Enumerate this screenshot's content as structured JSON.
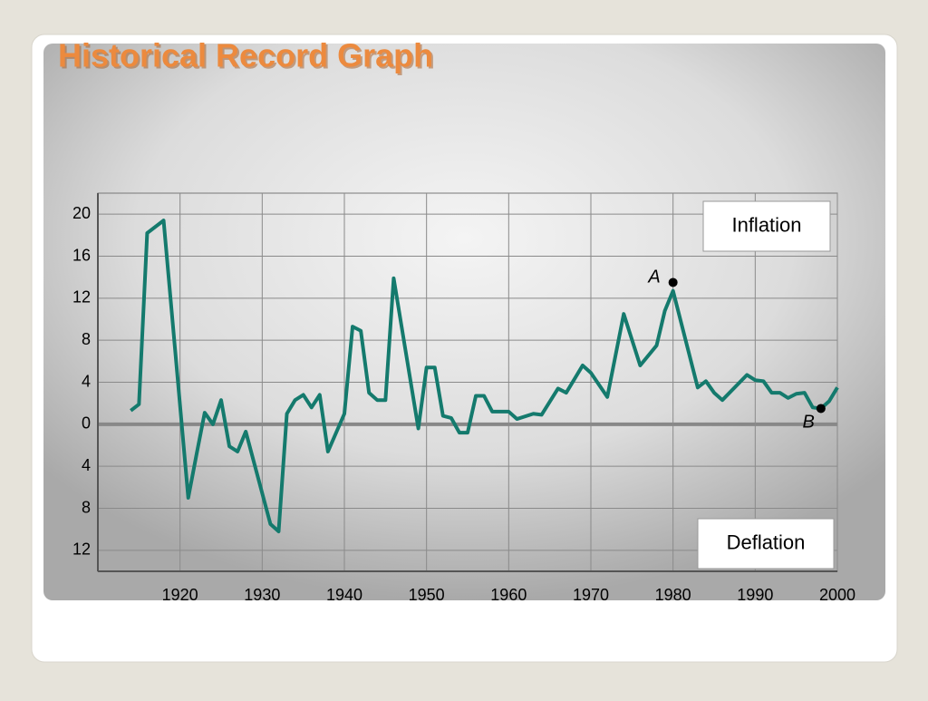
{
  "chart_data": {
    "type": "line",
    "title": "Historical Record Graph",
    "x": [
      1914,
      1915,
      1916,
      1918,
      1921,
      1922,
      1923,
      1924,
      1925,
      1926,
      1927,
      1928,
      1931,
      1932,
      1933,
      1934,
      1935,
      1936,
      1937,
      1938,
      1940,
      1941,
      1942,
      1943,
      1944,
      1945,
      1946,
      1949,
      1950,
      1951,
      1952,
      1953,
      1954,
      1955,
      1956,
      1957,
      1958,
      1960,
      1961,
      1963,
      1964,
      1966,
      1967,
      1969,
      1970,
      1972,
      1974,
      1976,
      1978,
      1979,
      1980,
      1983,
      1984,
      1985,
      1986,
      1989,
      1990,
      1991,
      1992,
      1993,
      1994,
      1995,
      1996,
      1997,
      1998,
      1999,
      2000
    ],
    "values": [
      1.3,
      1.9,
      18.2,
      19.4,
      -7.0,
      -2.9,
      1.1,
      0,
      2.3,
      -2.1,
      -2.6,
      -0.7,
      -9.5,
      -10.2,
      1.0,
      2.3,
      2.8,
      1.6,
      2.8,
      -2.6,
      1.0,
      9.3,
      8.9,
      3.0,
      2.3,
      2.3,
      13.9,
      -0.4,
      5.4,
      5.4,
      0.8,
      0.6,
      -0.8,
      -0.8,
      2.7,
      2.7,
      1.2,
      1.2,
      0.5,
      1.0,
      0.9,
      3.4,
      3.0,
      5.6,
      4.9,
      2.6,
      10.5,
      5.6,
      7.5,
      10.8,
      12.7,
      3.5,
      4.1,
      3.0,
      2.3,
      4.7,
      4.2,
      4.1,
      3.0,
      3.0,
      2.5,
      2.9,
      3.0,
      1.6,
      1.5,
      2.2,
      3.5
    ],
    "color": "#147a6d",
    "xlim": [
      1910,
      2000
    ],
    "xticks": [
      1920,
      1930,
      1940,
      1950,
      1960,
      1970,
      1980,
      1990,
      2000
    ],
    "ylim": [
      -14,
      22
    ],
    "yticks": [
      {
        "value": -12,
        "label": "12"
      },
      {
        "value": -8,
        "label": "8"
      },
      {
        "value": -4,
        "label": "4"
      },
      0,
      4,
      8,
      12,
      16,
      20
    ],
    "grid": true,
    "annotations": [
      "Inflation",
      "Deflation"
    ],
    "points": [
      {
        "label": "A",
        "x": 1980,
        "y": 13.5
      },
      {
        "label": "B",
        "x": 1998,
        "y": 1.5
      }
    ]
  }
}
